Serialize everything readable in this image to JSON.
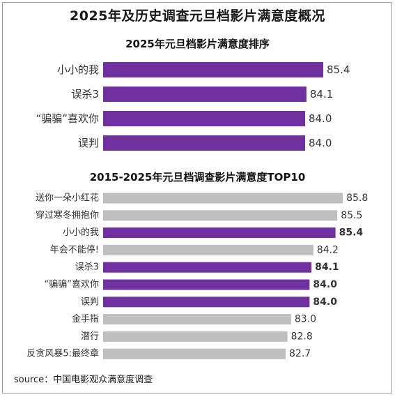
{
  "page": {
    "title": "2025年及历史调查元旦档影片满意度概况",
    "source": "source：中国电影观众满意度调查"
  },
  "colors": {
    "highlight": "#7030a0",
    "other": "#bfbfbf"
  },
  "chart_data": [
    {
      "type": "bar",
      "orientation": "horizontal",
      "title": "2025年元旦档影片满意度排序",
      "categories": [
        "小小的我",
        "误杀3",
        "“骗骗”喜欢你",
        "误判"
      ],
      "values": [
        85.4,
        84.1,
        84.0,
        84.0
      ],
      "value_labels": [
        "85.4",
        "84.1",
        "84.0",
        "84.0"
      ],
      "highlight": [
        true,
        true,
        true,
        true
      ]
    },
    {
      "type": "bar",
      "orientation": "horizontal",
      "title": "2015-2025年元旦档调查影片满意度TOP10",
      "categories": [
        "送你一朵小红花",
        "穿过寒冬拥抱你",
        "小小的我",
        "年会不能停!",
        "误杀3",
        "“骗骗”喜欢你",
        "误判",
        "金手指",
        "潜行",
        "反贪风暴5:最终章"
      ],
      "values": [
        85.8,
        85.5,
        85.4,
        84.2,
        84.1,
        84.0,
        84.0,
        83.0,
        82.8,
        82.7
      ],
      "value_labels": [
        "85.8",
        "85.5",
        "85.4",
        "84.2",
        "84.1",
        "84.0",
        "84.0",
        "83.0",
        "82.8",
        "82.7"
      ],
      "highlight": [
        false,
        false,
        true,
        false,
        true,
        true,
        true,
        false,
        false,
        false
      ]
    }
  ]
}
